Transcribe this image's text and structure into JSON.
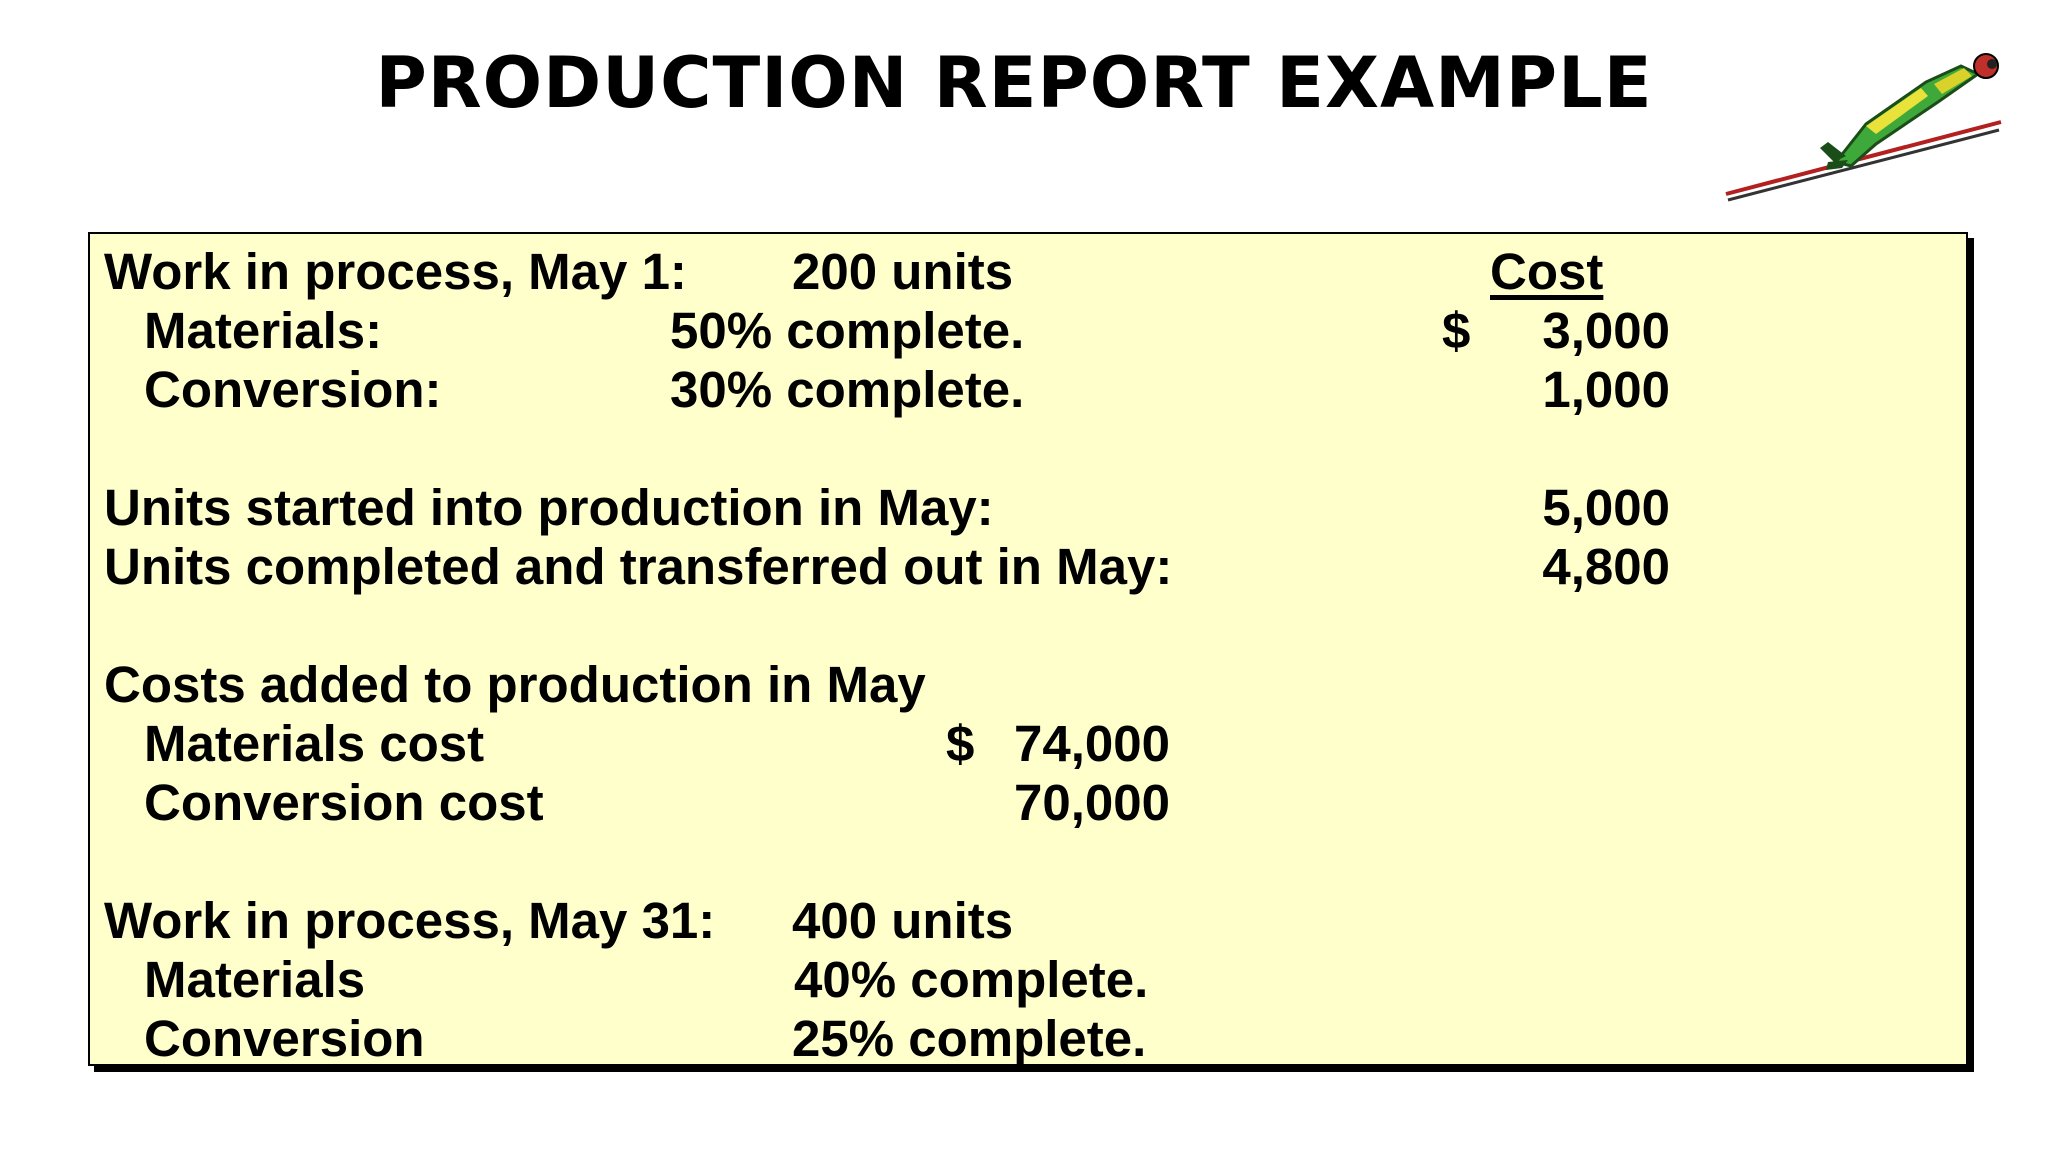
{
  "title": "PRODUCTION REPORT EXAMPLE",
  "clipart": "ski-jumper-clipart",
  "colors": {
    "panel_background": "#ffffcc",
    "panel_border": "#000000"
  },
  "report": {
    "cost_header": "Cost",
    "wip_start": {
      "label": "Work in process, May 1:",
      "units": "200 units",
      "materials": {
        "label": "Materials:",
        "pct": "50% complete.",
        "currency": "$",
        "cost": "3,000"
      },
      "conversion": {
        "label": "Conversion:",
        "pct": "30% complete.",
        "cost": "1,000"
      }
    },
    "units_started": {
      "label": "Units started into production in May:",
      "value": "5,000"
    },
    "units_completed": {
      "label": "Units completed and transferred out in May:",
      "value": "4,800"
    },
    "costs_added": {
      "label": "Costs added to production in May",
      "materials": {
        "label": "Materials cost",
        "currency": "$",
        "value": "74,000"
      },
      "conversion": {
        "label": "Conversion cost",
        "value": "70,000"
      }
    },
    "wip_end": {
      "label": "Work in process, May 31:",
      "units": "400 units",
      "materials": {
        "label": "Materials",
        "pct": "40% complete."
      },
      "conversion": {
        "label": "Conversion",
        "pct": "25% complete."
      }
    }
  }
}
